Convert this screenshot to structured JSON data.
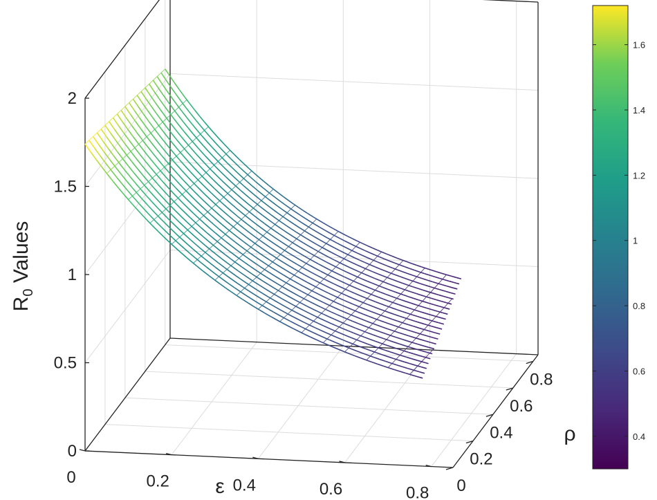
{
  "chart_data": {
    "type": "surface-3d",
    "zlabel": {
      "main": "R",
      "sub": "0",
      "rest": " Values"
    },
    "xlabel": "ε",
    "ylabel": "ρ",
    "x_ticks": [
      "0",
      "0.2",
      "0.4",
      "0.6",
      "0.8"
    ],
    "y_ticks": [
      "0",
      "0.2",
      "0.4",
      "0.6",
      "0.8"
    ],
    "z_ticks": [
      "0",
      "0.5",
      "1",
      "1.5",
      "2"
    ],
    "xlim": [
      0,
      0.85
    ],
    "ylim": [
      0,
      0.85
    ],
    "zlim": [
      0,
      2
    ],
    "grid": true,
    "colormap": "viridis",
    "colorbar": {
      "ticks": [
        "0.4",
        "0.6",
        "0.8",
        "1",
        "1.2",
        "1.4",
        "1.6"
      ],
      "range": [
        0.3,
        1.72
      ]
    },
    "rho_values": [
      0.0,
      0.04,
      0.08,
      0.12,
      0.16,
      0.2,
      0.24,
      0.28,
      0.32,
      0.36,
      0.4,
      0.44,
      0.48,
      0.52,
      0.56,
      0.6,
      0.64,
      0.68,
      0.72,
      0.76,
      0.8
    ],
    "eps_values": [
      0.0,
      0.05,
      0.1,
      0.15,
      0.2,
      0.25,
      0.3,
      0.35,
      0.4,
      0.45,
      0.5,
      0.55,
      0.6,
      0.65,
      0.7,
      0.75,
      0.8
    ],
    "r0_samples": [
      {
        "rho": 0.0,
        "eps": 0.0,
        "r0": 1.72
      },
      {
        "rho": 0.0,
        "eps": 0.8,
        "r0": 0.33
      },
      {
        "rho": 0.8,
        "eps": 0.0,
        "r0": 1.55
      },
      {
        "rho": 0.8,
        "eps": 0.8,
        "r0": 0.3
      }
    ]
  }
}
